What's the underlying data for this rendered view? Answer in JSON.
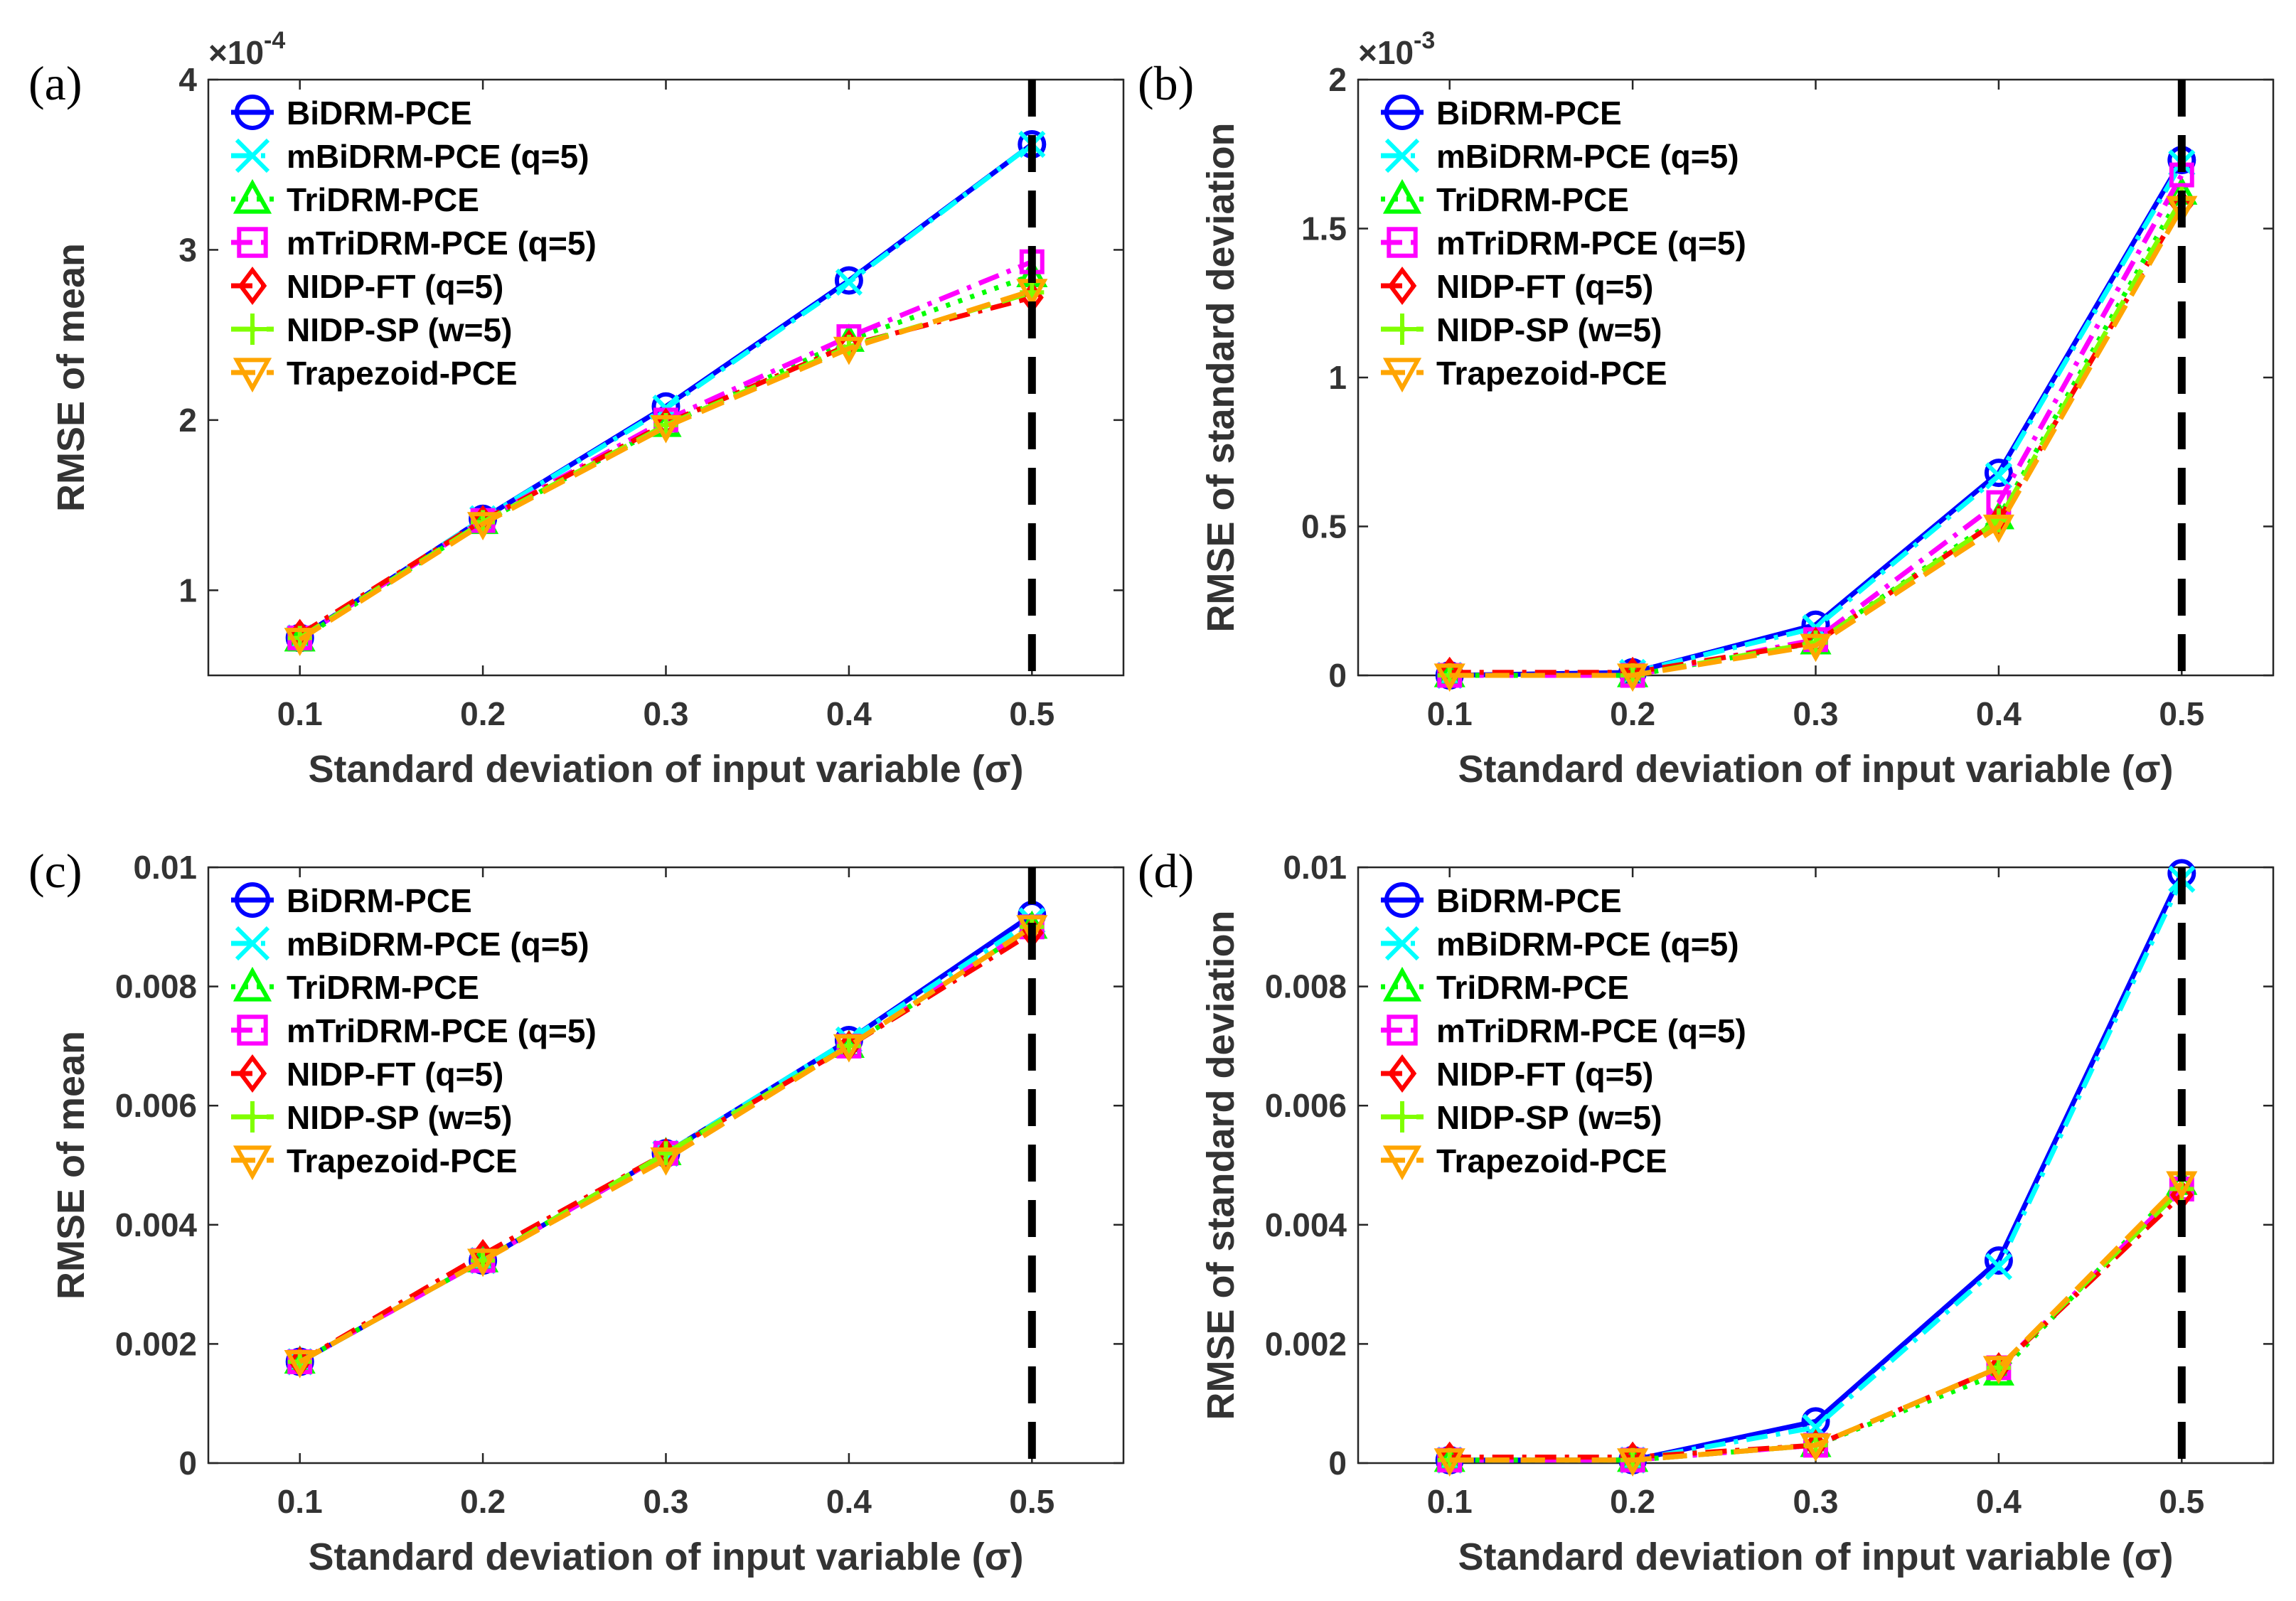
{
  "x_axis_label": "Standard deviation of input variable (σ)",
  "series_styles": [
    {
      "name": "BiDRM-PCE",
      "color": "#0000FF",
      "marker": "circle",
      "dash": "solid"
    },
    {
      "name": "mBiDRM-PCE (q=5)",
      "color": "#00FFFF",
      "marker": "x",
      "dash": "dashdot"
    },
    {
      "name": "TriDRM-PCE",
      "color": "#00FF00",
      "marker": "triangle-up",
      "dash": "dotted"
    },
    {
      "name": "mTriDRM-PCE (q=5)",
      "color": "#FF00FF",
      "marker": "square",
      "dash": "dashdot"
    },
    {
      "name": "NIDP-FT (q=5)",
      "color": "#FF0000",
      "marker": "diamond",
      "dash": "dashdot"
    },
    {
      "name": "NIDP-SP (w=5)",
      "color": "#80FF00",
      "marker": "plus",
      "dash": "dashed"
    },
    {
      "name": "Trapezoid-PCE",
      "color": "#FFA500",
      "marker": "triangle-down",
      "dash": "dashed"
    }
  ],
  "chart_data": [
    {
      "panel": "(a)",
      "type": "line",
      "ylabel": "RMSE of mean",
      "exponent_label": "×10-4",
      "x": [
        0.1,
        0.2,
        0.3,
        0.4,
        0.5
      ],
      "x_ticks": [
        "0.1",
        "0.2",
        "0.3",
        "0.4",
        "0.5"
      ],
      "xlim": [
        0.05,
        0.55
      ],
      "ylim": [
        0.5,
        4
      ],
      "y_ticks": [
        1,
        2,
        3,
        4
      ],
      "y_tick_labels": [
        "1",
        "2",
        "3",
        "4"
      ],
      "reference_line_x": 0.5,
      "series": [
        {
          "name": "BiDRM-PCE",
          "values": [
            0.72,
            1.42,
            2.08,
            2.82,
            3.62
          ]
        },
        {
          "name": "mBiDRM-PCE (q=5)",
          "values": [
            0.72,
            1.42,
            2.07,
            2.81,
            3.62
          ]
        },
        {
          "name": "TriDRM-PCE",
          "values": [
            0.71,
            1.4,
            1.97,
            2.47,
            2.85
          ]
        },
        {
          "name": "mTriDRM-PCE (q=5)",
          "values": [
            0.72,
            1.41,
            2.0,
            2.49,
            2.93
          ]
        },
        {
          "name": "NIDP-FT (q=5)",
          "values": [
            0.74,
            1.41,
            1.98,
            2.44,
            2.72
          ]
        },
        {
          "name": "NIDP-SP (w=5)",
          "values": [
            0.72,
            1.4,
            1.97,
            2.43,
            2.75
          ]
        },
        {
          "name": "Trapezoid-PCE",
          "values": [
            0.71,
            1.39,
            1.96,
            2.42,
            2.76
          ]
        }
      ]
    },
    {
      "panel": "(b)",
      "type": "line",
      "ylabel": "RMSE of standard deviation",
      "exponent_label": "×10-3",
      "x": [
        0.1,
        0.2,
        0.3,
        0.4,
        0.5
      ],
      "x_ticks": [
        "0.1",
        "0.2",
        "0.3",
        "0.4",
        "0.5"
      ],
      "xlim": [
        0.05,
        0.55
      ],
      "ylim": [
        0,
        2
      ],
      "y_ticks": [
        0,
        0.5,
        1,
        1.5,
        2
      ],
      "y_tick_labels": [
        "0",
        "0.5",
        "1",
        "1.5",
        "2"
      ],
      "reference_line_x": 0.5,
      "series": [
        {
          "name": "BiDRM-PCE",
          "values": [
            0.0,
            0.01,
            0.17,
            0.68,
            1.73
          ]
        },
        {
          "name": "mBiDRM-PCE (q=5)",
          "values": [
            0.0,
            0.01,
            0.16,
            0.67,
            1.72
          ]
        },
        {
          "name": "TriDRM-PCE",
          "values": [
            0.0,
            0.0,
            0.11,
            0.53,
            1.62
          ]
        },
        {
          "name": "mTriDRM-PCE (q=5)",
          "values": [
            0.0,
            0.0,
            0.12,
            0.58,
            1.68
          ]
        },
        {
          "name": "NIDP-FT (q=5)",
          "values": [
            0.01,
            0.01,
            0.11,
            0.52,
            1.58
          ]
        },
        {
          "name": "NIDP-SP (w=5)",
          "values": [
            0.0,
            0.0,
            0.11,
            0.52,
            1.6
          ]
        },
        {
          "name": "Trapezoid-PCE",
          "values": [
            0.0,
            0.0,
            0.1,
            0.5,
            1.57
          ]
        }
      ]
    },
    {
      "panel": "(c)",
      "type": "line",
      "ylabel": "RMSE of mean",
      "exponent_label": "",
      "x": [
        0.1,
        0.2,
        0.3,
        0.4,
        0.5
      ],
      "x_ticks": [
        "0.1",
        "0.2",
        "0.3",
        "0.4",
        "0.5"
      ],
      "xlim": [
        0.05,
        0.55
      ],
      "ylim": [
        0,
        0.01
      ],
      "y_ticks": [
        0,
        0.002,
        0.004,
        0.006,
        0.008,
        0.01
      ],
      "y_tick_labels": [
        "0",
        "0.002",
        "0.004",
        "0.006",
        "0.008",
        "0.01"
      ],
      "reference_line_x": 0.5,
      "series": [
        {
          "name": "BiDRM-PCE",
          "values": [
            0.0017,
            0.0034,
            0.0052,
            0.0071,
            0.0092
          ]
        },
        {
          "name": "mBiDRM-PCE (q=5)",
          "values": [
            0.0017,
            0.0034,
            0.0052,
            0.0071,
            0.0091
          ]
        },
        {
          "name": "TriDRM-PCE",
          "values": [
            0.0017,
            0.0034,
            0.0052,
            0.007,
            0.009
          ]
        },
        {
          "name": "mTriDRM-PCE (q=5)",
          "values": [
            0.0017,
            0.0034,
            0.0052,
            0.007,
            0.009
          ]
        },
        {
          "name": "NIDP-FT (q=5)",
          "values": [
            0.0017,
            0.0035,
            0.0052,
            0.007,
            0.0089
          ]
        },
        {
          "name": "NIDP-SP (w=5)",
          "values": [
            0.0017,
            0.0034,
            0.0052,
            0.007,
            0.009
          ]
        },
        {
          "name": "Trapezoid-PCE",
          "values": [
            0.0017,
            0.0034,
            0.0051,
            0.007,
            0.009
          ]
        }
      ]
    },
    {
      "panel": "(d)",
      "type": "line",
      "ylabel": "RMSE of standard deviation",
      "exponent_label": "",
      "x": [
        0.1,
        0.2,
        0.3,
        0.4,
        0.5
      ],
      "x_ticks": [
        "0.1",
        "0.2",
        "0.3",
        "0.4",
        "0.5"
      ],
      "xlim": [
        0.05,
        0.55
      ],
      "ylim": [
        0,
        0.01
      ],
      "y_ticks": [
        0,
        0.002,
        0.004,
        0.006,
        0.008,
        0.01
      ],
      "y_tick_labels": [
        "0",
        "0.002",
        "0.004",
        "0.006",
        "0.008",
        "0.01"
      ],
      "reference_line_x": 0.5,
      "series": [
        {
          "name": "BiDRM-PCE",
          "values": [
            5e-05,
            5e-05,
            0.0007,
            0.0034,
            0.0099
          ]
        },
        {
          "name": "mBiDRM-PCE (q=5)",
          "values": [
            5e-05,
            5e-05,
            0.0006,
            0.0033,
            0.0098
          ]
        },
        {
          "name": "TriDRM-PCE",
          "values": [
            5e-05,
            5e-05,
            0.0003,
            0.0015,
            0.0047
          ]
        },
        {
          "name": "mTriDRM-PCE (q=5)",
          "values": [
            5e-05,
            5e-05,
            0.0003,
            0.0016,
            0.0046
          ]
        },
        {
          "name": "NIDP-FT (q=5)",
          "values": [
            0.0001,
            0.0001,
            0.0003,
            0.0016,
            0.0045
          ]
        },
        {
          "name": "NIDP-SP (w=5)",
          "values": [
            5e-05,
            5e-05,
            0.0003,
            0.0016,
            0.0046
          ]
        },
        {
          "name": "Trapezoid-PCE",
          "values": [
            5e-05,
            5e-05,
            0.0003,
            0.0016,
            0.0047
          ]
        }
      ]
    }
  ]
}
